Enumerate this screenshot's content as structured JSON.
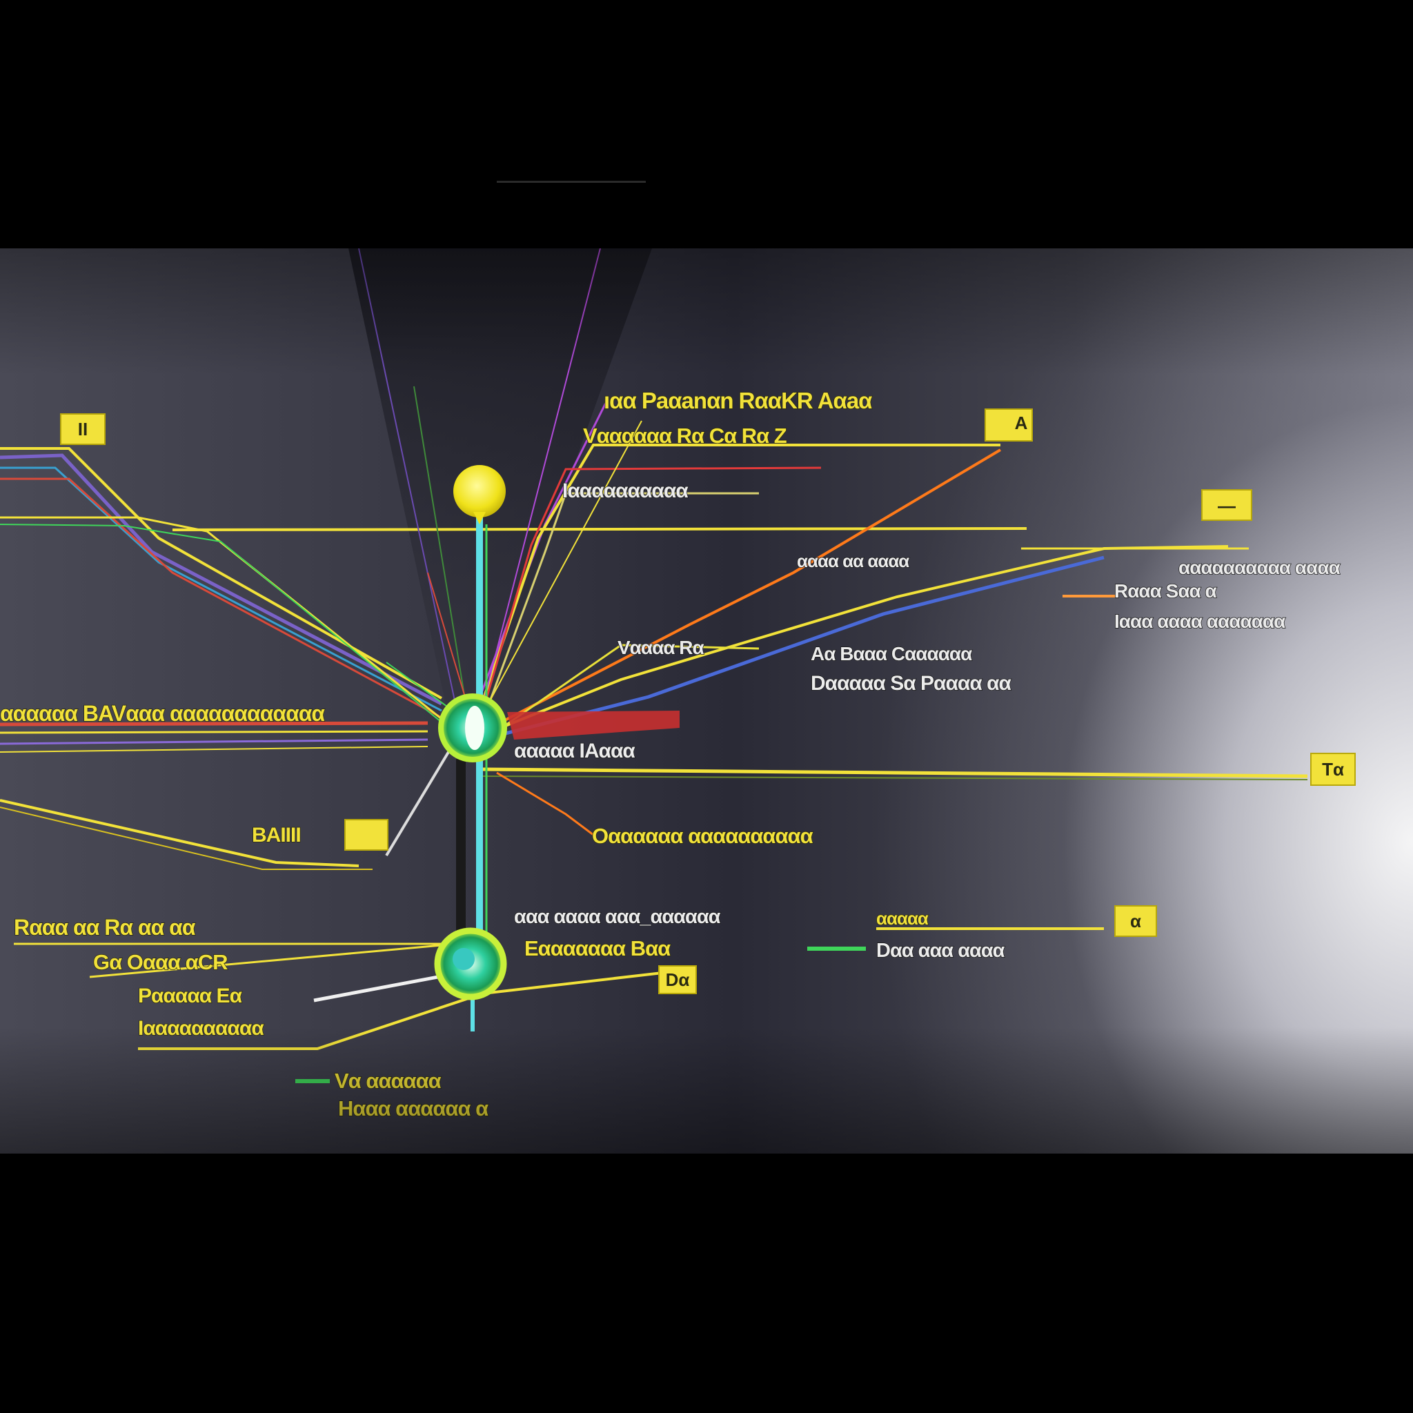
{
  "colors": {
    "accent_yellow": "#f2e23a",
    "hub_green": "#3fd65a",
    "spine_cyan": "#5ee0e6",
    "orange_line": "#ff7a1a",
    "red_line": "#e23a3a",
    "purple_line": "#b04ad8",
    "text_white": "#ececec"
  },
  "labels": {
    "top_title": "ıαα Paαanαn RααKR Aαaα",
    "top_sub1": "Vαααααα Rα Cα Rα Z",
    "top_sub2": "Iαααααααααα",
    "mid_right1": "αααα αα αααα",
    "right_block_l1": "αααααααααα αααα",
    "right_block_l2": "Rααα Sαα α",
    "right_block_l3": "Iααα αααα ααααααα",
    "center_tag": "Vαααα Rα",
    "center_right_l1": "Aα Bααα Cαααααα",
    "center_right_l2": "Dααααα Sα Pαααα αα",
    "left_hub_label": "αααααα BAVααα αααααααααααα",
    "hub_right_label": "ααααα IAααα",
    "left_lower_tag": "BAIIII",
    "mid_lower_label": "Oαααααα αααααααααα",
    "low_left1": "Rααα  αα Rα αα αα",
    "low_left2": "Gα  Oααα αCR",
    "low_left3": "Pααααα Eα",
    "low_left4": "Iαααααααααα",
    "low_center1": "ααα  αααα ααα_αααααα",
    "low_center2": "Eααααααα Bαα",
    "low_right_tag": "ααααα",
    "low_right_label": "Dαα ααα αααα",
    "bottom_l1": "Vα αααααα",
    "bottom_l2": "Hααα αααααα α"
  },
  "badges": {
    "top_left": "II",
    "top_right": "A",
    "right_far": "—",
    "right_mid": "Tα",
    "left_lower": "",
    "low_right": "α",
    "low_center": "Dα"
  }
}
